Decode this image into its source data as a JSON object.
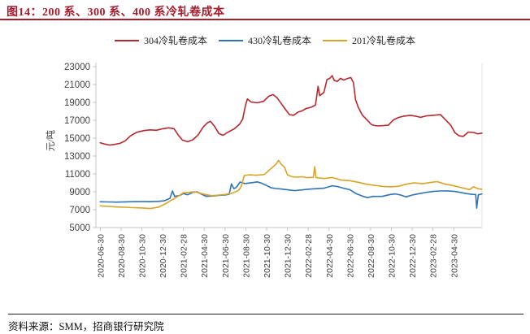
{
  "header": {
    "title": "图14：200 系、300 系、400 系冷轧卷成本"
  },
  "style": {
    "accent_red": "#A61C2C",
    "axis_color": "#C6C6C6",
    "tick_text_color": "#3F3F3F",
    "series_red": "#B5282E",
    "series_blue": "#2E74B5",
    "series_gold": "#D9A326"
  },
  "legend": {
    "items": [
      {
        "label": "304冷轧卷成本",
        "color": "#B5282E"
      },
      {
        "label": "430冷轧卷成本",
        "color": "#2E74B5"
      },
      {
        "label": "201冷轧卷成本",
        "color": "#D9A326"
      }
    ]
  },
  "footer": {
    "source": "资料来源：SMM，招商银行研究院"
  },
  "chart_data": {
    "type": "line",
    "title": "200/300/400系冷轧卷成本",
    "xlabel": "",
    "ylabel": "元/吨",
    "ylim": [
      5000,
      23000
    ],
    "y_ticks": [
      5000,
      7000,
      9000,
      11000,
      13000,
      15000,
      17000,
      19000,
      21000,
      23000
    ],
    "grid": false,
    "legend_position": "top",
    "x_unit": "months since 2020-06-30",
    "x_tick_months": [
      0,
      2,
      4,
      6,
      8,
      10,
      12,
      14,
      16,
      18,
      20,
      22,
      24,
      26,
      28,
      30,
      32,
      34
    ],
    "x_tick_labels": [
      "2020-06-30",
      "2020-08-30",
      "2020-10-30",
      "2020-12-30",
      "2021-02-28",
      "2021-04-30",
      "2021-06-30",
      "2021-08-30",
      "2021-10-30",
      "2021-12-30",
      "2022-02-28",
      "2022-04-30",
      "2022-06-30",
      "2022-08-30",
      "2022-10-30",
      "2022-12-30",
      "2023-02-28",
      "2023-04-30"
    ],
    "series": [
      {
        "name": "304冷轧卷成本",
        "color": "#B5282E",
        "points": [
          [
            0,
            14480
          ],
          [
            0.4,
            14350
          ],
          [
            0.9,
            14230
          ],
          [
            1.4,
            14300
          ],
          [
            1.9,
            14420
          ],
          [
            2.4,
            14700
          ],
          [
            2.9,
            15250
          ],
          [
            3.5,
            15650
          ],
          [
            4.2,
            15850
          ],
          [
            4.8,
            15930
          ],
          [
            5.4,
            15880
          ],
          [
            6,
            16050
          ],
          [
            6.6,
            16150
          ],
          [
            7.1,
            16050
          ],
          [
            7.5,
            15350
          ],
          [
            7.9,
            14780
          ],
          [
            8.4,
            14600
          ],
          [
            8.9,
            14820
          ],
          [
            9.4,
            15350
          ],
          [
            9.9,
            16250
          ],
          [
            10.3,
            16720
          ],
          [
            10.6,
            16880
          ],
          [
            11,
            16320
          ],
          [
            11.4,
            15520
          ],
          [
            11.8,
            15320
          ],
          [
            12.3,
            15680
          ],
          [
            12.9,
            16050
          ],
          [
            13.4,
            16550
          ],
          [
            13.7,
            17150
          ],
          [
            13.95,
            18600
          ],
          [
            14.15,
            19380
          ],
          [
            14.5,
            19050
          ],
          [
            15.1,
            18950
          ],
          [
            15.7,
            19120
          ],
          [
            16.2,
            19680
          ],
          [
            16.6,
            19880
          ],
          [
            17,
            19520
          ],
          [
            17.4,
            18880
          ],
          [
            17.8,
            18230
          ],
          [
            18.2,
            17620
          ],
          [
            18.6,
            17560
          ],
          [
            19,
            17900
          ],
          [
            19.4,
            18050
          ],
          [
            19.8,
            18320
          ],
          [
            20.3,
            18460
          ],
          [
            20.7,
            18700
          ],
          [
            20.95,
            20790
          ],
          [
            21.1,
            19750
          ],
          [
            21.5,
            20100
          ],
          [
            21.8,
            21550
          ],
          [
            22.1,
            21720
          ],
          [
            22.3,
            21990
          ],
          [
            22.5,
            21450
          ],
          [
            22.8,
            21350
          ],
          [
            23.1,
            21700
          ],
          [
            23.4,
            21500
          ],
          [
            23.8,
            21680
          ],
          [
            24.1,
            21780
          ],
          [
            24.35,
            21200
          ],
          [
            24.55,
            19300
          ],
          [
            24.8,
            18480
          ],
          [
            25.2,
            17580
          ],
          [
            25.7,
            16980
          ],
          [
            26.1,
            16500
          ],
          [
            26.6,
            16360
          ],
          [
            27.2,
            16400
          ],
          [
            27.7,
            16450
          ],
          [
            28.2,
            17050
          ],
          [
            28.7,
            17320
          ],
          [
            29.2,
            17460
          ],
          [
            29.8,
            17550
          ],
          [
            30.3,
            17460
          ],
          [
            30.8,
            17330
          ],
          [
            31.4,
            17500
          ],
          [
            32,
            17550
          ],
          [
            32.7,
            17640
          ],
          [
            33.2,
            17050
          ],
          [
            33.7,
            16450
          ],
          [
            34.1,
            15620
          ],
          [
            34.5,
            15260
          ],
          [
            34.9,
            15190
          ],
          [
            35.4,
            15680
          ],
          [
            35.9,
            15640
          ],
          [
            36.3,
            15480
          ],
          [
            36.7,
            15560
          ]
        ]
      },
      {
        "name": "430冷轧卷成本",
        "color": "#2E74B5",
        "points": [
          [
            0,
            7880
          ],
          [
            0.8,
            7860
          ],
          [
            1.6,
            7850
          ],
          [
            2.4,
            7870
          ],
          [
            3.2,
            7890
          ],
          [
            4,
            7900
          ],
          [
            4.8,
            7890
          ],
          [
            5.6,
            7930
          ],
          [
            6.2,
            8010
          ],
          [
            6.7,
            8260
          ],
          [
            6.95,
            9090
          ],
          [
            7.15,
            8490
          ],
          [
            7.6,
            8560
          ],
          [
            8,
            8800
          ],
          [
            8.4,
            8660
          ],
          [
            8.9,
            8940
          ],
          [
            9.3,
            9000
          ],
          [
            9.7,
            8760
          ],
          [
            10.2,
            8490
          ],
          [
            10.8,
            8530
          ],
          [
            11.4,
            8600
          ],
          [
            12,
            8640
          ],
          [
            12.4,
            8720
          ],
          [
            12.62,
            9880
          ],
          [
            12.85,
            9350
          ],
          [
            13.1,
            9520
          ],
          [
            13.45,
            10090
          ],
          [
            13.9,
            9920
          ],
          [
            14.5,
            10010
          ],
          [
            15.1,
            10110
          ],
          [
            15.5,
            9960
          ],
          [
            16,
            9700
          ],
          [
            16.4,
            9460
          ],
          [
            16.9,
            9360
          ],
          [
            17.5,
            9300
          ],
          [
            18.1,
            9210
          ],
          [
            18.7,
            9130
          ],
          [
            19.4,
            9210
          ],
          [
            20.1,
            9300
          ],
          [
            20.8,
            9350
          ],
          [
            21.5,
            9400
          ],
          [
            22.3,
            9670
          ],
          [
            22.8,
            9590
          ],
          [
            23.4,
            9400
          ],
          [
            24,
            9240
          ],
          [
            24.6,
            8800
          ],
          [
            25.3,
            8480
          ],
          [
            25.7,
            8350
          ],
          [
            26.2,
            8480
          ],
          [
            27.1,
            8480
          ],
          [
            27.9,
            8700
          ],
          [
            28.4,
            8760
          ],
          [
            28.9,
            8640
          ],
          [
            29.4,
            8430
          ],
          [
            30,
            8640
          ],
          [
            30.7,
            8800
          ],
          [
            31.4,
            8950
          ],
          [
            32.1,
            9050
          ],
          [
            32.7,
            9090
          ],
          [
            33.4,
            9100
          ],
          [
            34,
            9050
          ],
          [
            34.6,
            8940
          ],
          [
            35.2,
            8800
          ],
          [
            35.8,
            8710
          ],
          [
            36.1,
            8700
          ],
          [
            36.2,
            7160
          ],
          [
            36.35,
            8650
          ],
          [
            36.7,
            8760
          ]
        ]
      },
      {
        "name": "201冷轧卷成本",
        "color": "#D9A326",
        "points": [
          [
            0,
            7430
          ],
          [
            0.8,
            7360
          ],
          [
            1.6,
            7300
          ],
          [
            2.4,
            7270
          ],
          [
            3.2,
            7230
          ],
          [
            4,
            7190
          ],
          [
            4.8,
            7130
          ],
          [
            5.6,
            7280
          ],
          [
            6.2,
            7610
          ],
          [
            6.9,
            8110
          ],
          [
            7.5,
            8510
          ],
          [
            8,
            8890
          ],
          [
            8.6,
            8950
          ],
          [
            9.1,
            9000
          ],
          [
            9.6,
            8850
          ],
          [
            10.1,
            8700
          ],
          [
            10.7,
            8560
          ],
          [
            11.3,
            8620
          ],
          [
            12,
            8700
          ],
          [
            12.7,
            8850
          ],
          [
            13.3,
            9150
          ],
          [
            13.55,
            9600
          ],
          [
            13.85,
            10820
          ],
          [
            14.4,
            10900
          ],
          [
            15,
            10850
          ],
          [
            15.8,
            10940
          ],
          [
            16.3,
            11480
          ],
          [
            16.9,
            12080
          ],
          [
            17.15,
            12520
          ],
          [
            17.4,
            12080
          ],
          [
            17.7,
            11780
          ],
          [
            18,
            10900
          ],
          [
            18.4,
            10700
          ],
          [
            18.9,
            10640
          ],
          [
            19.4,
            10690
          ],
          [
            19.9,
            10580
          ],
          [
            20.5,
            10620
          ],
          [
            20.62,
            11800
          ],
          [
            20.75,
            10600
          ],
          [
            21.5,
            10480
          ],
          [
            22.3,
            10600
          ],
          [
            23.2,
            10300
          ],
          [
            24,
            10250
          ],
          [
            24.8,
            10060
          ],
          [
            25.6,
            9850
          ],
          [
            26.5,
            9700
          ],
          [
            27.2,
            9600
          ],
          [
            27.9,
            9550
          ],
          [
            28.7,
            9620
          ],
          [
            29.4,
            9850
          ],
          [
            30.2,
            10000
          ],
          [
            31,
            9900
          ],
          [
            31.8,
            10050
          ],
          [
            32.4,
            10140
          ],
          [
            33.2,
            9850
          ],
          [
            33.9,
            9700
          ],
          [
            34.6,
            9500
          ],
          [
            35.2,
            9340
          ],
          [
            35.5,
            9250
          ],
          [
            35.9,
            9560
          ],
          [
            36.3,
            9350
          ],
          [
            36.7,
            9290
          ]
        ]
      }
    ]
  }
}
